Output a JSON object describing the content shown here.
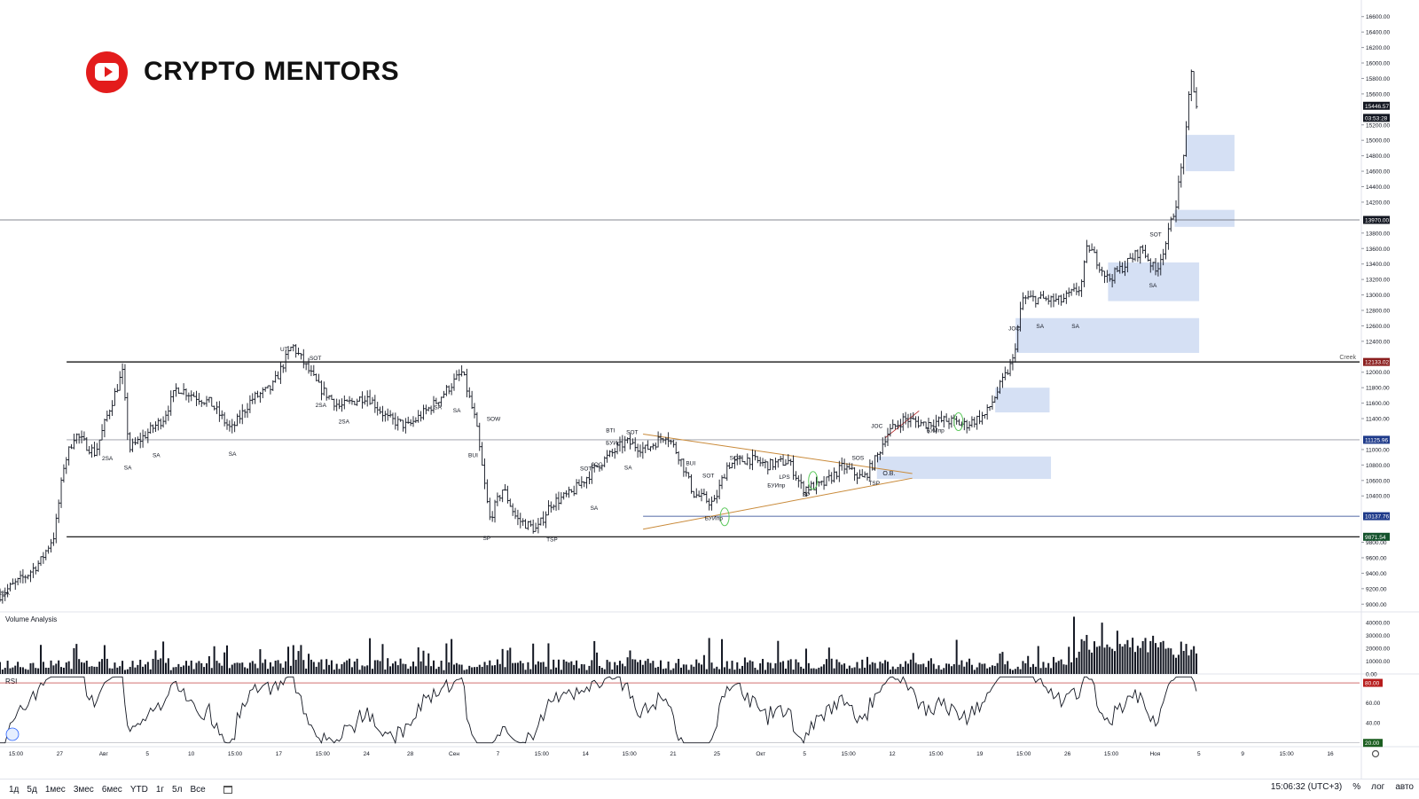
{
  "brand": {
    "title": "CRYPTO MENTORS",
    "icon": "youtube-icon",
    "color": "#e31c1c"
  },
  "price_axis": {
    "ticks": [
      "16600.00",
      "16400.00",
      "16200.00",
      "16000.00",
      "15800.00",
      "15600.00",
      "15200.00",
      "15000.00",
      "14800.00",
      "14600.00",
      "14400.00",
      "14200.00",
      "13800.00",
      "13600.00",
      "13400.00",
      "13200.00",
      "13000.00",
      "12800.00",
      "12600.00",
      "12400.00",
      "12000.00",
      "11800.00",
      "11600.00",
      "11400.00",
      "11000.00",
      "10800.00",
      "10600.00",
      "10400.00",
      "9800.00",
      "9600.00",
      "9400.00",
      "9200.00",
      "9000.00"
    ],
    "badges": [
      {
        "value": 15446.57,
        "label": "15446.57",
        "color": "#131722"
      },
      {
        "value": 15290,
        "label": "03:53:28",
        "color": "#131722"
      },
      {
        "value": 13970,
        "label": "13970.00",
        "color": "#131722"
      },
      {
        "value": 12133.02,
        "label": "12133.02",
        "color": "#8b1f1f"
      },
      {
        "value": 11125.96,
        "label": "11125.96",
        "color": "#1e3a8a"
      },
      {
        "value": 10137.76,
        "label": "10137.76",
        "color": "#1e3a8a"
      },
      {
        "value": 9871.54,
        "label": "9871.54",
        "color": "#14532d"
      }
    ],
    "creek_label": "Creek"
  },
  "time_axis": {
    "labels": [
      "15:00",
      "27",
      "Авг",
      "5",
      "10",
      "15:00",
      "17",
      "15:00",
      "24",
      "28",
      "Сен",
      "7",
      "15:00",
      "14",
      "15:00",
      "21",
      "25",
      "Окт",
      "5",
      "15:00",
      "12",
      "15:00",
      "19",
      "15:00",
      "26",
      "15:00",
      "Ноя",
      "5",
      "9",
      "15:00",
      "16"
    ]
  },
  "volume_panel": {
    "title": "Volume Analysis",
    "ticks": [
      "40000.00",
      "30000.00",
      "20000.00",
      "10000.00",
      "0.00"
    ]
  },
  "rsi_panel": {
    "title": "RSI",
    "ticks": [
      "60.00",
      "40.00"
    ],
    "upper_label": "80.00",
    "lower_label": "20.00",
    "upper_color": "#b71c1c",
    "lower_color": "#1b5e20"
  },
  "bottom_bar": {
    "ranges": [
      "1д",
      "5д",
      "1мес",
      "3мес",
      "6мес",
      "YTD",
      "1г",
      "5л",
      "Все"
    ],
    "clock": "15:06:32 (UTC+3)",
    "options": [
      "%",
      "лог",
      "авто"
    ]
  },
  "chart_data": {
    "type": "ohlc",
    "ylim": [
      8900,
      16700
    ],
    "levels": [
      {
        "price": 12133.02,
        "label": "Creek",
        "color": "#000000"
      },
      {
        "price": 11125.96,
        "color": "#9598a1"
      },
      {
        "price": 10137.76,
        "color": "#1e3a8a"
      },
      {
        "price": 9871.54,
        "color": "#000000"
      },
      {
        "price": 13970.0,
        "color": "#5d606b"
      }
    ],
    "zones": [
      {
        "t0": 0.872,
        "t1": 0.908,
        "p0": 14600,
        "p1": 15070
      },
      {
        "t0": 0.864,
        "t1": 0.908,
        "p0": 13880,
        "p1": 14100
      },
      {
        "t0": 0.815,
        "t1": 0.882,
        "p0": 12920,
        "p1": 13420
      },
      {
        "t0": 0.747,
        "t1": 0.882,
        "p0": 12250,
        "p1": 12700
      },
      {
        "t0": 0.732,
        "t1": 0.772,
        "p0": 11480,
        "p1": 11800
      },
      {
        "t0": 0.645,
        "t1": 0.773,
        "p0": 10620,
        "p1": 10910
      }
    ],
    "triangle": {
      "upper": [
        [
          0.473,
          11200
        ],
        [
          0.671,
          10690
        ]
      ],
      "lower": [
        [
          0.473,
          9970
        ],
        [
          0.671,
          10630
        ]
      ]
    },
    "annotations": [
      {
        "text": "2SA",
        "t": 0.003,
        "p": 9120
      },
      {
        "text": "2SA",
        "t": 0.079,
        "p": 10860
      },
      {
        "text": "SA",
        "t": 0.094,
        "p": 10740
      },
      {
        "text": "SA",
        "t": 0.115,
        "p": 10900
      },
      {
        "text": "SA",
        "t": 0.171,
        "p": 10920
      },
      {
        "text": "UT",
        "t": 0.209,
        "p": 12270
      },
      {
        "text": "SOT",
        "t": 0.232,
        "p": 12160
      },
      {
        "text": "2SA",
        "t": 0.236,
        "p": 11550
      },
      {
        "text": "2SA",
        "t": 0.253,
        "p": 11340
      },
      {
        "text": "SA",
        "t": 0.322,
        "p": 11520
      },
      {
        "text": "SA",
        "t": 0.336,
        "p": 11480
      },
      {
        "text": "SOW",
        "t": 0.363,
        "p": 11370
      },
      {
        "text": "BUI",
        "t": 0.348,
        "p": 10900
      },
      {
        "text": "SP",
        "t": 0.358,
        "p": 9830
      },
      {
        "text": "TSP",
        "t": 0.406,
        "p": 9810
      },
      {
        "text": "BTI",
        "t": 0.449,
        "p": 11220
      },
      {
        "text": "SOT",
        "t": 0.465,
        "p": 11200
      },
      {
        "text": "БУИп",
        "t": 0.451,
        "p": 11060
      },
      {
        "text": "SOT",
        "t": 0.431,
        "p": 10730
      },
      {
        "text": "JOC",
        "t": 0.439,
        "p": 10780
      },
      {
        "text": "SA",
        "t": 0.462,
        "p": 10740
      },
      {
        "text": "SA",
        "t": 0.437,
        "p": 10220
      },
      {
        "text": "BUI",
        "t": 0.508,
        "p": 10800
      },
      {
        "text": "SOT",
        "t": 0.521,
        "p": 10640
      },
      {
        "text": "SOT",
        "t": 0.541,
        "p": 10870
      },
      {
        "text": "LPS",
        "t": 0.577,
        "p": 10620
      },
      {
        "text": "БУИпр",
        "t": 0.571,
        "p": 10510
      },
      {
        "text": "SP",
        "t": 0.593,
        "p": 10390
      },
      {
        "text": "БУИпр",
        "t": 0.525,
        "p": 10090
      },
      {
        "text": "SOS",
        "t": 0.631,
        "p": 10870
      },
      {
        "text": "TSP",
        "t": 0.643,
        "p": 10540
      },
      {
        "text": "JOC",
        "t": 0.645,
        "p": 11280
      },
      {
        "text": "БУИпр",
        "t": 0.688,
        "p": 11220
      },
      {
        "text": "JOC",
        "t": 0.746,
        "p": 12540
      },
      {
        "text": "SA",
        "t": 0.765,
        "p": 12570
      },
      {
        "text": "SA",
        "t": 0.791,
        "p": 12570
      },
      {
        "text": "SOT",
        "t": 0.85,
        "p": 13760
      },
      {
        "text": "SA",
        "t": 0.848,
        "p": 13100
      }
    ],
    "ob_label": {
      "text": "O.B.",
      "t": 0.648,
      "p": 10700
    },
    "anchors": [
      [
        0.0,
        9120
      ],
      [
        0.02,
        9380
      ],
      [
        0.03,
        9560
      ],
      [
        0.04,
        9900
      ],
      [
        0.047,
        10800
      ],
      [
        0.055,
        11200
      ],
      [
        0.07,
        10950
      ],
      [
        0.08,
        11500
      ],
      [
        0.09,
        12000
      ],
      [
        0.095,
        11000
      ],
      [
        0.12,
        11400
      ],
      [
        0.13,
        11800
      ],
      [
        0.155,
        11600
      ],
      [
        0.17,
        11250
      ],
      [
        0.185,
        11650
      ],
      [
        0.2,
        11800
      ],
      [
        0.215,
        12350
      ],
      [
        0.235,
        11800
      ],
      [
        0.25,
        11550
      ],
      [
        0.27,
        11700
      ],
      [
        0.285,
        11400
      ],
      [
        0.3,
        11300
      ],
      [
        0.32,
        11600
      ],
      [
        0.34,
        12000
      ],
      [
        0.35,
        11350
      ],
      [
        0.36,
        10100
      ],
      [
        0.37,
        10500
      ],
      [
        0.38,
        10100
      ],
      [
        0.395,
        9960
      ],
      [
        0.405,
        10300
      ],
      [
        0.42,
        10430
      ],
      [
        0.44,
        10800
      ],
      [
        0.46,
        11100
      ],
      [
        0.475,
        11000
      ],
      [
        0.49,
        11200
      ],
      [
        0.5,
        10900
      ],
      [
        0.51,
        10430
      ],
      [
        0.525,
        10300
      ],
      [
        0.535,
        10800
      ],
      [
        0.55,
        10880
      ],
      [
        0.565,
        10800
      ],
      [
        0.58,
        10850
      ],
      [
        0.59,
        10500
      ],
      [
        0.605,
        10540
      ],
      [
        0.62,
        10780
      ],
      [
        0.635,
        10620
      ],
      [
        0.645,
        10900
      ],
      [
        0.652,
        11200
      ],
      [
        0.665,
        11400
      ],
      [
        0.68,
        11330
      ],
      [
        0.695,
        11380
      ],
      [
        0.71,
        11320
      ],
      [
        0.725,
        11450
      ],
      [
        0.735,
        11800
      ],
      [
        0.745,
        12150
      ],
      [
        0.752,
        12950
      ],
      [
        0.765,
        12950
      ],
      [
        0.78,
        12920
      ],
      [
        0.795,
        13100
      ],
      [
        0.8,
        13650
      ],
      [
        0.815,
        13200
      ],
      [
        0.825,
        13350
      ],
      [
        0.84,
        13600
      ],
      [
        0.85,
        13300
      ],
      [
        0.858,
        13700
      ],
      [
        0.865,
        14200
      ],
      [
        0.872,
        15000
      ],
      [
        0.876,
        15900
      ],
      [
        0.88,
        15450
      ]
    ],
    "volume_range": [
      0,
      45000
    ],
    "rsi_range": [
      18,
      88
    ]
  }
}
